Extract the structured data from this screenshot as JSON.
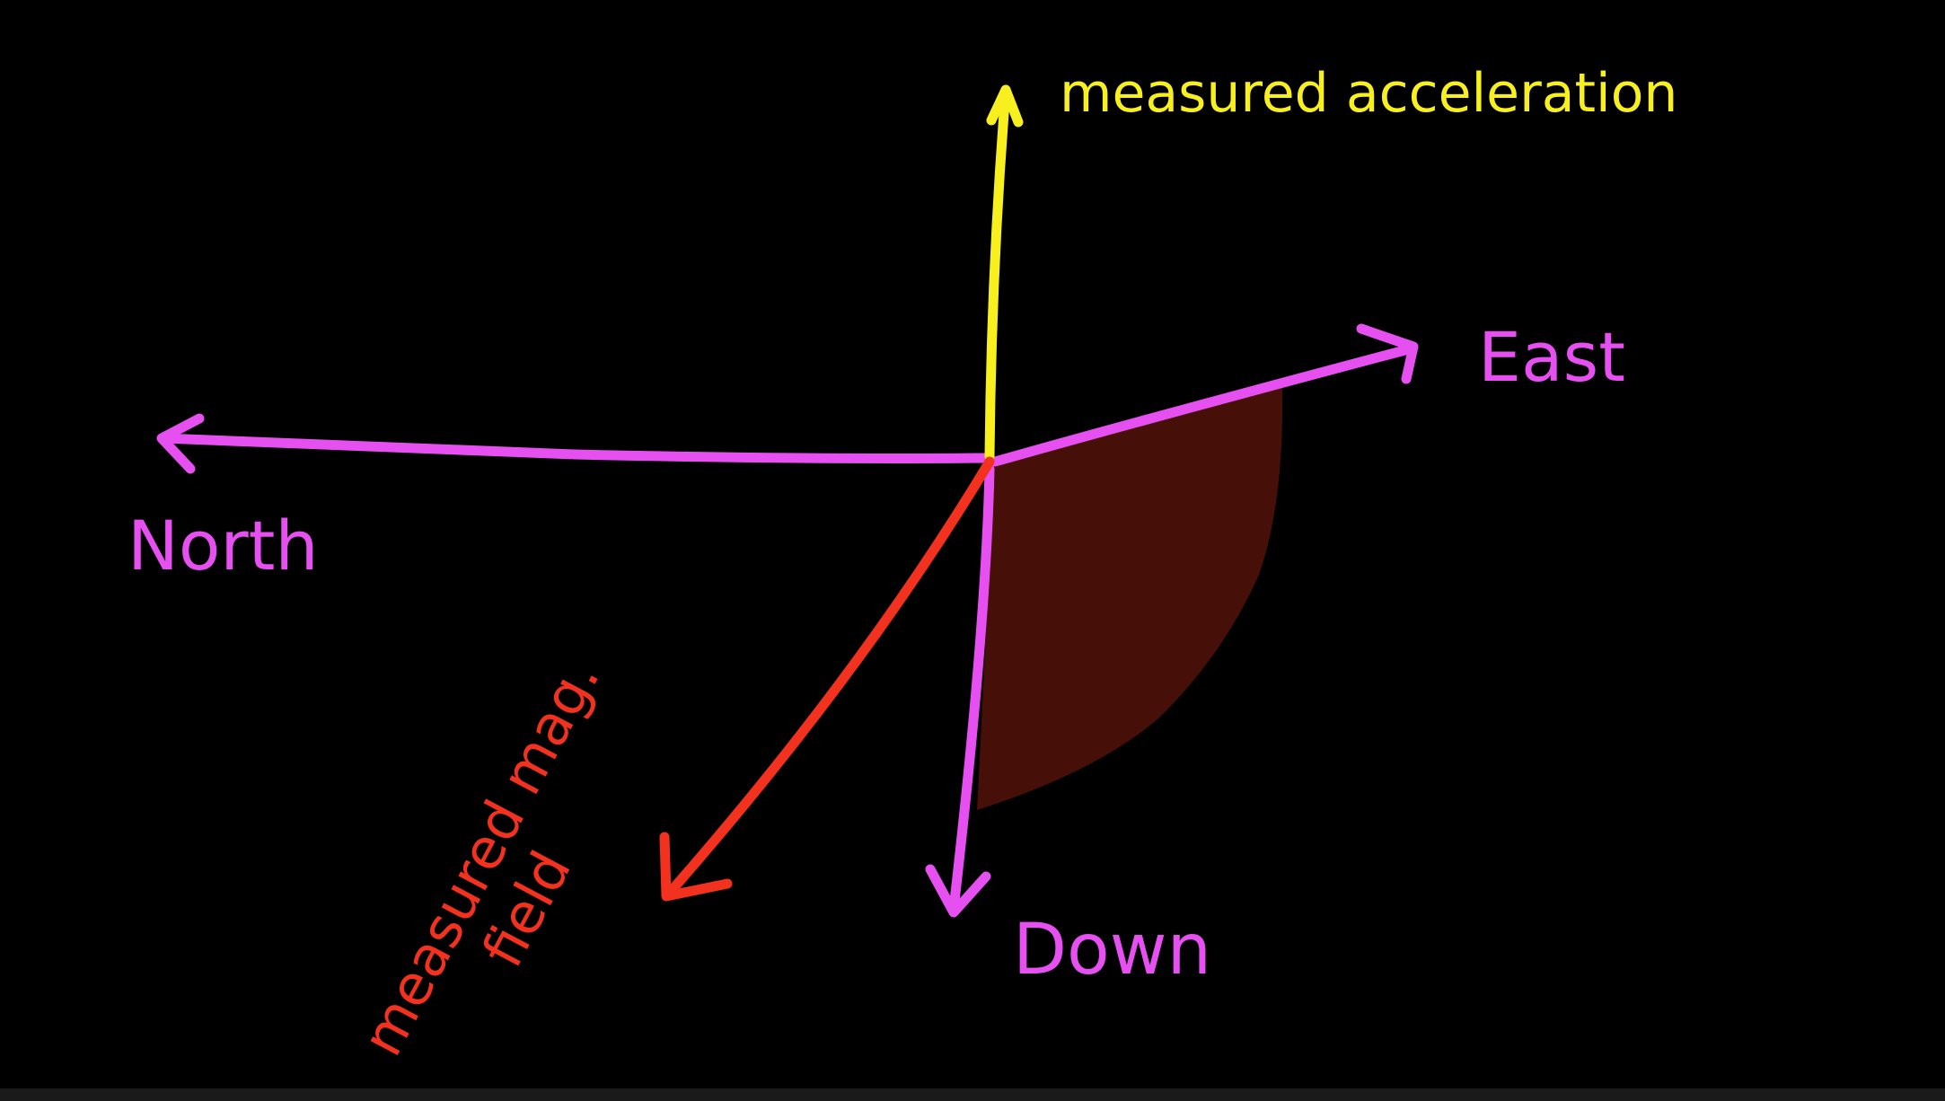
{
  "colors": {
    "background": "#000000",
    "frame_axes": "#e650f0",
    "acceleration": "#f7f01e",
    "magnetic_field": "#f2321e",
    "shaded_region": "#461009",
    "bottom_bar": "#1a1a1a"
  },
  "labels": {
    "acceleration": "measured acceleration",
    "east": "East",
    "north": "North",
    "down": "Down",
    "mag_field_line1": "measured mag.",
    "mag_field_line2": "field"
  }
}
